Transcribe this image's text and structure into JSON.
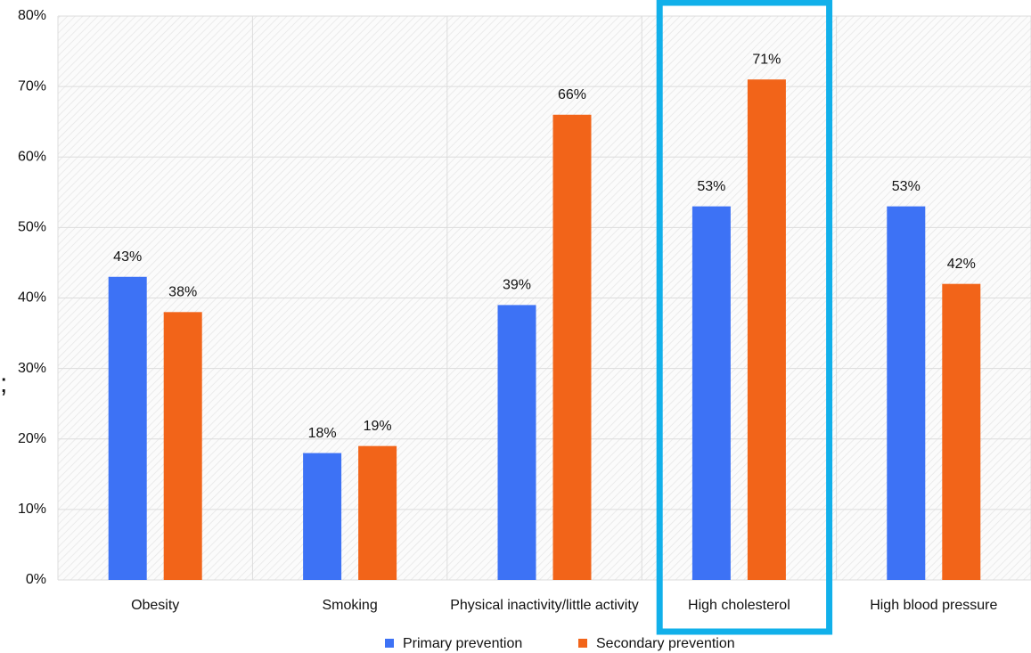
{
  "chart_data": {
    "type": "bar",
    "annotation": ";",
    "categories": [
      "Obesity",
      "Smoking",
      "Physical inactivity/little activity",
      "High cholesterol",
      "High blood pressure"
    ],
    "series": [
      {
        "name": "Primary prevention",
        "color": "#3d72f5",
        "values": [
          43,
          18,
          39,
          53,
          53
        ],
        "value_labels": [
          "43%",
          "18%",
          "39%",
          "53%",
          "53%"
        ]
      },
      {
        "name": "Secondary prevention",
        "color": "#f26419",
        "values": [
          38,
          19,
          66,
          71,
          42
        ],
        "value_labels": [
          "38%",
          "19%",
          "66%",
          "71%",
          "42%"
        ]
      }
    ],
    "ylim": [
      0,
      80
    ],
    "yticks": [
      {
        "value": 0,
        "label": "0%"
      },
      {
        "value": 10,
        "label": "10%"
      },
      {
        "value": 20,
        "label": "20%"
      },
      {
        "value": 30,
        "label": "30%"
      },
      {
        "value": 40,
        "label": "40%"
      },
      {
        "value": 50,
        "label": "50%"
      },
      {
        "value": 60,
        "label": "60%"
      },
      {
        "value": 70,
        "label": "70%"
      },
      {
        "value": 80,
        "label": "80%"
      }
    ],
    "grid": true
  }
}
